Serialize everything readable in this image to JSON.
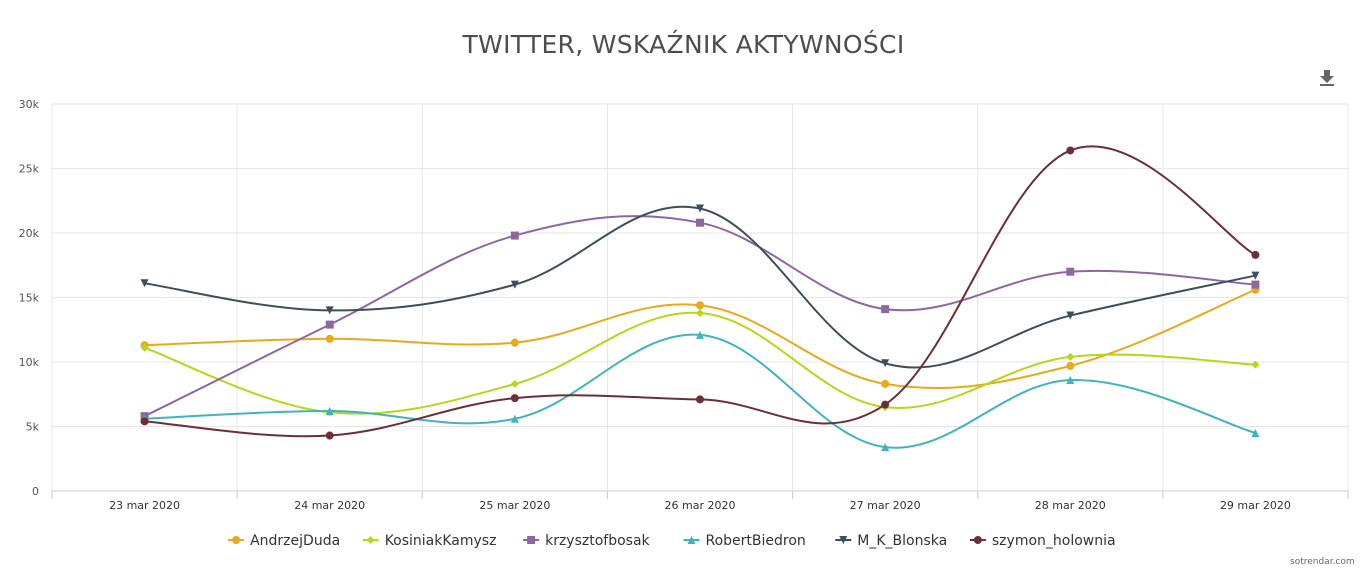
{
  "chart_data": {
    "type": "line",
    "title": "TWITTER, WSKAŹNIK AKTYWNOŚCI",
    "categories": [
      "23 mar 2020",
      "24 mar 2020",
      "25 mar 2020",
      "26 mar 2020",
      "27 mar 2020",
      "28 mar 2020",
      "29 mar 2020"
    ],
    "ylim": [
      0,
      30000
    ],
    "y_ticks": [
      "0",
      "5k",
      "10k",
      "15k",
      "20k",
      "25k",
      "30k"
    ],
    "grid": true,
    "legend_position": "bottom",
    "series": [
      {
        "name": "AndrzejDuda",
        "color": "#e8a91c",
        "marker": "circle",
        "values": [
          11300,
          11800,
          11500,
          14400,
          8300,
          9700,
          15600
        ]
      },
      {
        "name": "KosiniakKamysz",
        "color": "#b9d51a",
        "marker": "diamond",
        "values": [
          11100,
          6100,
          8300,
          13800,
          6500,
          10400,
          9800
        ]
      },
      {
        "name": "krzysztofbosak",
        "color": "#8f67a0",
        "marker": "square",
        "values": [
          5800,
          12900,
          19800,
          20800,
          14100,
          17000,
          16000
        ]
      },
      {
        "name": "RobertBiedron",
        "color": "#40b4bd",
        "marker": "triangle",
        "values": [
          5600,
          6200,
          5600,
          12100,
          3400,
          8600,
          4500
        ]
      },
      {
        "name": "M_K_Blonska",
        "color": "#3d4f5c",
        "marker": "triangle-down",
        "values": [
          16100,
          14000,
          16000,
          21900,
          9900,
          13600,
          16700
        ]
      },
      {
        "name": "szymon_holownia",
        "color": "#6b2f35",
        "marker": "circle",
        "values": [
          5400,
          4300,
          7200,
          7100,
          6700,
          26400,
          18300
        ]
      }
    ]
  },
  "toolbar": {
    "download_icon": "download-icon"
  },
  "watermark": "sotrendar.com"
}
